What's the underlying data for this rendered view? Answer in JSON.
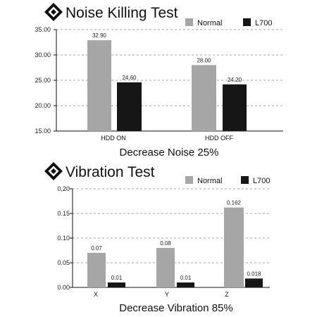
{
  "colors": {
    "normal": "#a6a6a6",
    "l700": "#161616",
    "grid": "#8a8a8a",
    "axis": "#111111"
  },
  "chart_data": [
    {
      "type": "bar",
      "title": "Noise Killing Test",
      "caption": "Decrease Noise 25%",
      "categories": [
        "HDD ON",
        "HDD OFF"
      ],
      "series": [
        {
          "name": "Normal",
          "values": [
            32.9,
            28.0
          ],
          "labels": [
            "32.90",
            "28.00"
          ]
        },
        {
          "name": "L700",
          "values": [
            24.6,
            24.2
          ],
          "labels": [
            "24.60",
            "24.20"
          ]
        }
      ],
      "ylim": [
        15,
        35
      ],
      "yticks": [
        "35.00",
        "30.00",
        "25.00",
        "20.00",
        "15.00"
      ],
      "grid": true,
      "legend": "top-right",
      "xlabel": "",
      "ylabel": ""
    },
    {
      "type": "bar",
      "title": "Vibration Test",
      "caption": "Decrease Vibration 85%",
      "categories": [
        "X",
        "Y",
        "Z"
      ],
      "series": [
        {
          "name": "Normal",
          "values": [
            0.07,
            0.08,
            0.162
          ],
          "labels": [
            "0.07",
            "0.08",
            "0.162"
          ]
        },
        {
          "name": "L700",
          "values": [
            0.01,
            0.01,
            0.018
          ],
          "labels": [
            "0.01",
            "0.01",
            "0.018"
          ]
        }
      ],
      "ylim": [
        0,
        0.2
      ],
      "yticks": [
        "0,20",
        "0.15",
        "0.10",
        "0.05",
        "0.00"
      ],
      "grid": true,
      "legend": "top-right",
      "xlabel": "",
      "ylabel": ""
    }
  ]
}
